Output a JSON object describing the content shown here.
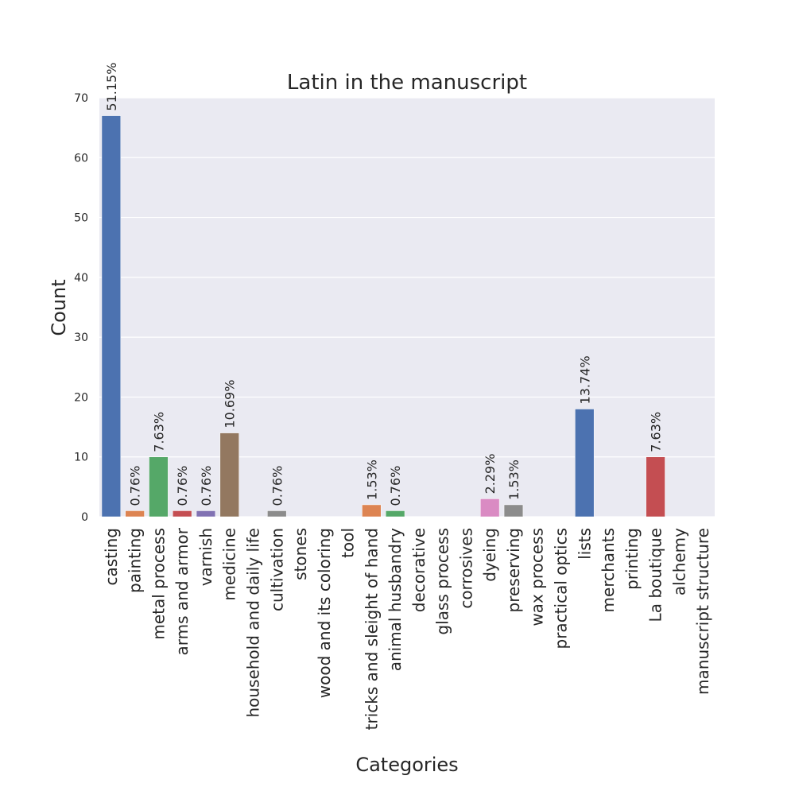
{
  "chart_data": {
    "type": "bar",
    "title": "Latin in the manuscript",
    "xlabel": "Categories",
    "ylabel": "Count",
    "ylim": [
      0,
      70
    ],
    "yticks": [
      0,
      10,
      20,
      30,
      40,
      50,
      60,
      70
    ],
    "grid": true,
    "categories": [
      "casting",
      "painting",
      "metal process",
      "arms and armor",
      "varnish",
      "medicine",
      "household and daily life",
      "cultivation",
      "stones",
      "wood and its coloring",
      "tool",
      "tricks and sleight of hand",
      "animal husbandry",
      "decorative",
      "glass process",
      "corrosives",
      "dyeing",
      "preserving",
      "wax process",
      "practical optics",
      "lists",
      "merchants",
      "printing",
      "La boutique",
      "alchemy",
      "manuscript structure"
    ],
    "values": [
      67,
      1,
      10,
      1,
      1,
      14,
      0,
      1,
      0,
      0,
      0,
      2,
      1,
      0,
      0,
      0,
      3,
      2,
      0,
      0,
      18,
      0,
      0,
      10,
      0,
      0
    ],
    "bar_labels": [
      "51.15%",
      "0.76%",
      "7.63%",
      "0.76%",
      "0.76%",
      "10.69%",
      "",
      "0.76%",
      "",
      "",
      "",
      "1.53%",
      "0.76%",
      "",
      "",
      "",
      "2.29%",
      "1.53%",
      "",
      "",
      "13.74%",
      "",
      "",
      "7.63%",
      "",
      ""
    ],
    "colors": [
      "#4c72b0",
      "#dd8452",
      "#55a868",
      "#c44e52",
      "#8172b3",
      "#937860",
      "#da8bc3",
      "#8c8c8c",
      "#ccb974",
      "#64b5cd",
      "#4c72b0",
      "#dd8452",
      "#55a868",
      "#c44e52",
      "#8172b3",
      "#937860",
      "#da8bc3",
      "#8c8c8c",
      "#ccb974",
      "#64b5cd",
      "#4c72b0",
      "#dd8452",
      "#55a868",
      "#c44e52",
      "#8172b3",
      "#937860"
    ],
    "background_color": "#eaeaf2",
    "grid_color": "#ffffff"
  }
}
